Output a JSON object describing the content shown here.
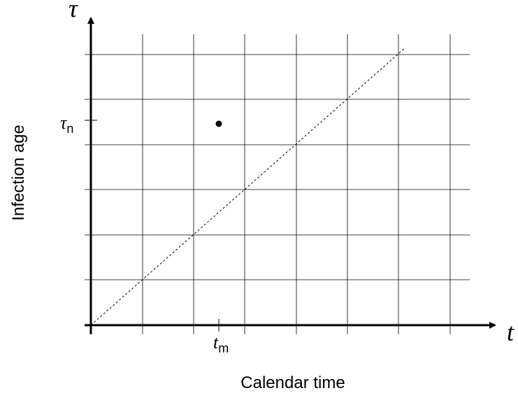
{
  "diagram": {
    "vertical_axis_symbol": "τ",
    "horizontal_axis_symbol": "t",
    "y_axis_label": "Infection age",
    "x_axis_label": "Calendar time",
    "tau_n": {
      "base": "τ",
      "sub": "n"
    },
    "t_m": {
      "base": "t",
      "sub": "m"
    },
    "colors": {
      "ink": "#000000",
      "grid": "#000000",
      "background": "#ffffff"
    }
  }
}
